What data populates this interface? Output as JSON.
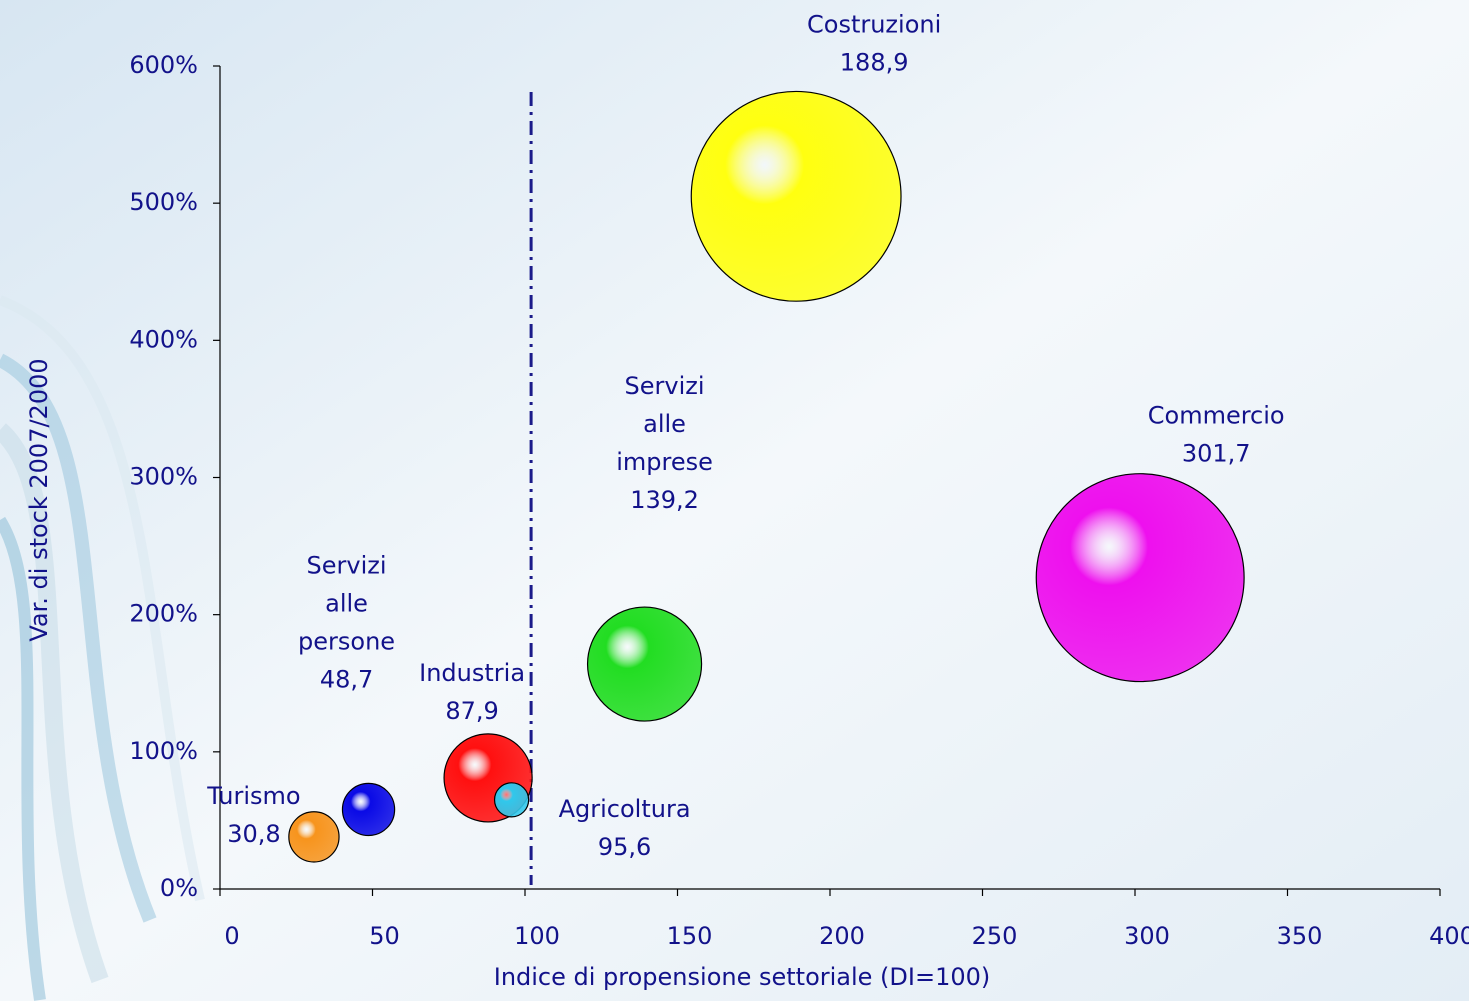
{
  "chart_data": {
    "type": "bubble",
    "x_label": "Indice di propensione settoriale (DI=100)",
    "y_label": "Var. di stock 2007/2000",
    "categories": [
      "Turismo",
      "Servizi\nalle\npersone",
      "Industria",
      "Agricoltura",
      "Servizi\nalle\nimprese",
      "Costruzioni",
      "Commercio"
    ],
    "x": [
      30.8,
      48.7,
      87.9,
      95.6,
      139.2,
      188.9,
      301.7
    ],
    "value_labels": [
      "30,8",
      "48,7",
      "87,9",
      "95,6",
      "139,2",
      "188,9",
      "301,7"
    ],
    "values": [
      38,
      58,
      81,
      65,
      164,
      505,
      227
    ],
    "sizes": [
      6.3,
      6.8,
      19.4,
      2.9,
      32.5,
      110,
      108
    ],
    "colors": [
      "#f7941d",
      "#0a0ae6",
      "#ff1010",
      "#30c8ec",
      "#22dd22",
      "#ffff10",
      "#ee10ee"
    ],
    "reference_line_x": 102,
    "xlim": [
      0,
      400
    ],
    "xticks": [
      0,
      50,
      100,
      150,
      200,
      250,
      300,
      350,
      400
    ],
    "ylim": [
      0,
      600
    ],
    "yticks": [
      {
        "value": 0,
        "label": "0%"
      },
      {
        "value": 100,
        "label": "100%"
      },
      {
        "value": 200,
        "label": "200%"
      },
      {
        "value": 300,
        "label": "300%"
      },
      {
        "value": 400,
        "label": "400%"
      },
      {
        "value": 500,
        "label": "500%"
      },
      {
        "value": 600,
        "label": "600%"
      }
    ],
    "grid": false
  }
}
